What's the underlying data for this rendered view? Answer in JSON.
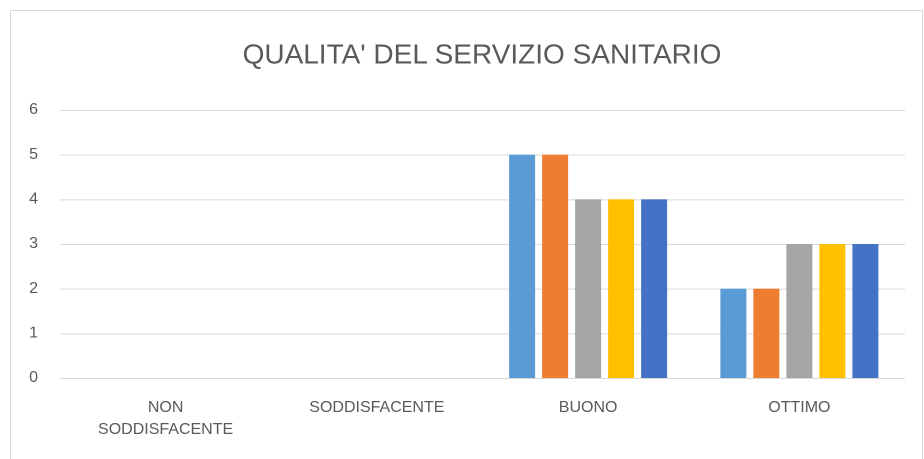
{
  "chart_data": {
    "type": "bar",
    "title": "QUALITA' DEL SERVIZIO SANITARIO",
    "categories": [
      "NON SODDISFACENTE",
      "SODDISFACENTE",
      "BUONO",
      "OTTIMO"
    ],
    "series": [
      {
        "color": "#5b9bd5",
        "values": [
          0,
          0,
          5,
          2
        ]
      },
      {
        "color": "#ed7d31",
        "values": [
          0,
          0,
          5,
          2
        ]
      },
      {
        "color": "#a5a5a5",
        "values": [
          0,
          0,
          4,
          3
        ]
      },
      {
        "color": "#ffc000",
        "values": [
          0,
          0,
          4,
          3
        ]
      },
      {
        "color": "#4472c4",
        "values": [
          0,
          0,
          4,
          3
        ]
      }
    ],
    "ylim": [
      0,
      6
    ],
    "yticks": [
      0,
      1,
      2,
      3,
      4,
      5,
      6
    ],
    "grid": true
  }
}
